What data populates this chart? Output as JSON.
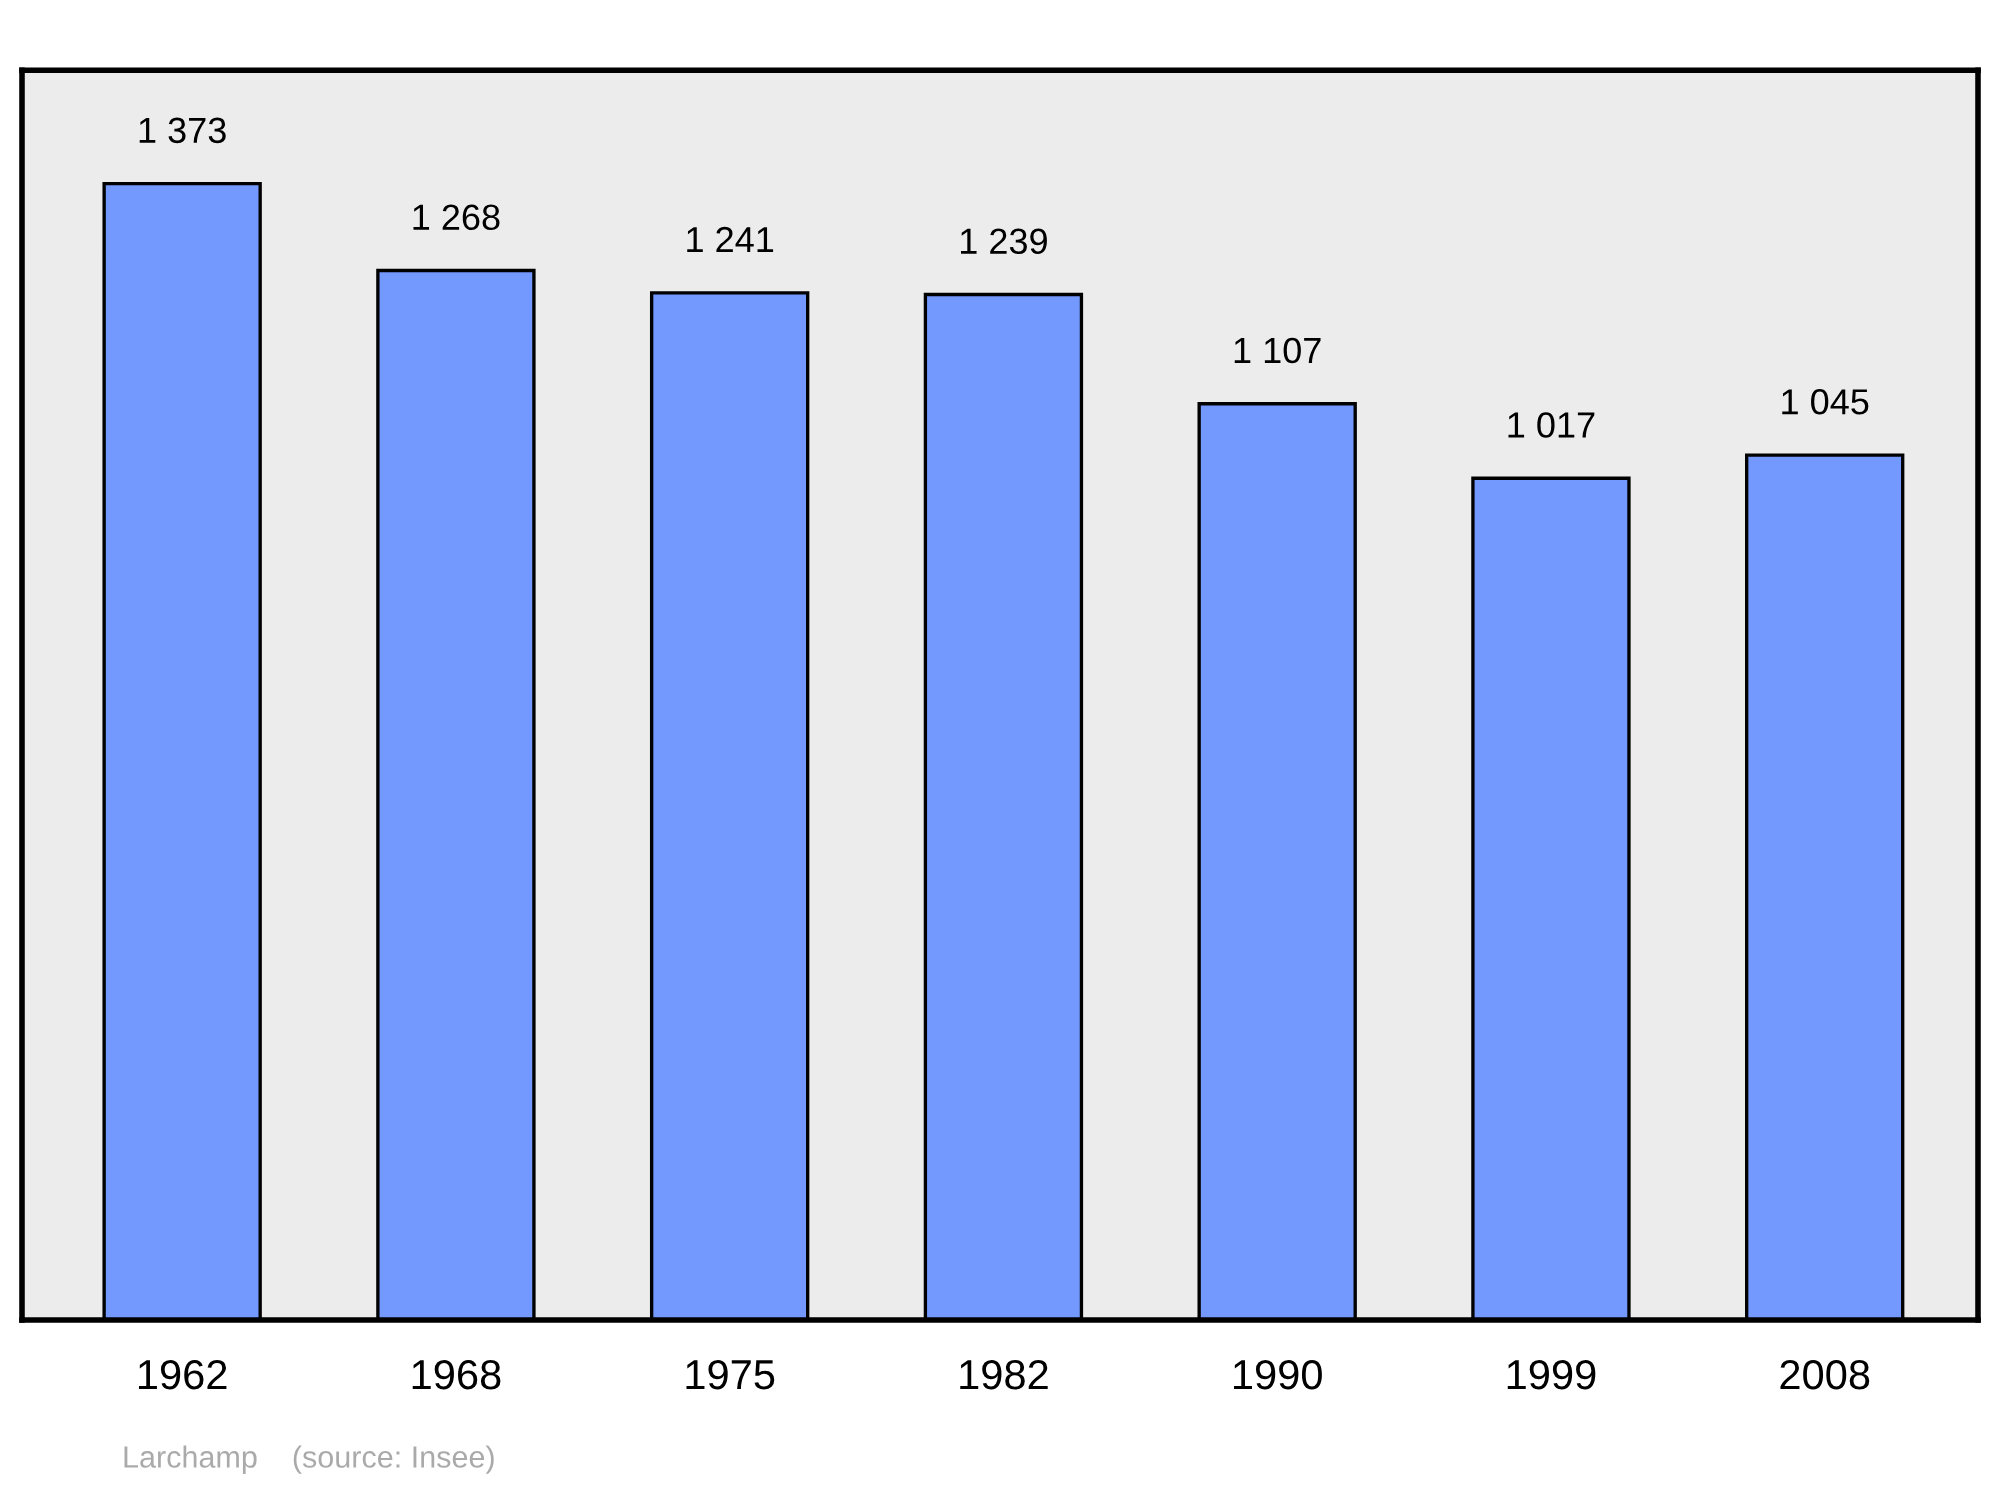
{
  "chart_data": {
    "type": "bar",
    "categories": [
      "1962",
      "1968",
      "1975",
      "1982",
      "1990",
      "1999",
      "2008"
    ],
    "values": [
      1373,
      1268,
      1241,
      1239,
      1107,
      1017,
      1045
    ],
    "value_labels": [
      "1 373",
      "1 268",
      "1 241",
      "1 239",
      "1 107",
      "1 017",
      "1 045"
    ],
    "color": "#7399ff",
    "ylim": [
      0,
      1510
    ],
    "grid": false,
    "tick_labels": "x",
    "annotations": [
      "Larchamp    (source: Insee)"
    ]
  }
}
